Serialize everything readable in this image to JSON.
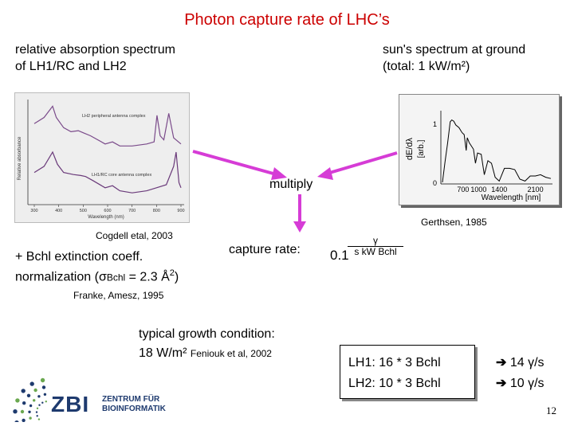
{
  "title": "Photon capture rate of LHC’s",
  "left_heading": {
    "line1": "relative absorption spectrum",
    "line2": "of LH1/RC and LH2"
  },
  "right_heading": {
    "line1": "sun's spectrum at ground",
    "line2": "(total: 1 kW/m²)"
  },
  "absorption_plot": {
    "ylabel": "Relative absorbance",
    "xlabel": "Wavelength (nm)",
    "label_top": "LH2 peripheral antenna complex",
    "label_bottom": "LH1/RC core antenna complex",
    "xticks": [
      "300",
      "400",
      "500",
      "600",
      "700",
      "800",
      "900"
    ],
    "top_curve": [
      [
        300,
        0.78
      ],
      [
        340,
        0.84
      ],
      [
        375,
        0.95
      ],
      [
        390,
        0.84
      ],
      [
        420,
        0.74
      ],
      [
        450,
        0.7
      ],
      [
        480,
        0.71
      ],
      [
        500,
        0.69
      ],
      [
        530,
        0.66
      ],
      [
        590,
        0.58
      ],
      [
        620,
        0.6
      ],
      [
        650,
        0.56
      ],
      [
        700,
        0.56
      ],
      [
        760,
        0.58
      ],
      [
        790,
        0.6
      ],
      [
        802,
        0.86
      ],
      [
        815,
        0.66
      ],
      [
        830,
        0.62
      ],
      [
        850,
        0.88
      ],
      [
        870,
        0.64
      ],
      [
        900,
        0.58
      ]
    ],
    "bottom_curve": [
      [
        300,
        0.3
      ],
      [
        340,
        0.36
      ],
      [
        375,
        0.5
      ],
      [
        395,
        0.38
      ],
      [
        420,
        0.3
      ],
      [
        460,
        0.28
      ],
      [
        490,
        0.27
      ],
      [
        510,
        0.26
      ],
      [
        540,
        0.22
      ],
      [
        590,
        0.15
      ],
      [
        620,
        0.17
      ],
      [
        650,
        0.12
      ],
      [
        700,
        0.1
      ],
      [
        760,
        0.12
      ],
      [
        800,
        0.15
      ],
      [
        840,
        0.18
      ],
      [
        870,
        0.36
      ],
      [
        880,
        0.5
      ],
      [
        892,
        0.2
      ],
      [
        900,
        0.15
      ]
    ]
  },
  "cite_cogdell": "Cogdell etal, 2003",
  "sun_plot": {
    "ylabel": "dE/dλ",
    "yunit": "[arb.]",
    "ytick1": "1",
    "ytick0": "0",
    "xticks": [
      "700",
      "1000",
      "1400",
      "2100"
    ],
    "xlabel": "Wavelength [nm]",
    "curve": [
      [
        300,
        0.0
      ],
      [
        350,
        0.32
      ],
      [
        400,
        0.62
      ],
      [
        450,
        0.95
      ],
      [
        480,
        0.98
      ],
      [
        520,
        0.96
      ],
      [
        560,
        0.9
      ],
      [
        620,
        0.86
      ],
      [
        680,
        0.78
      ],
      [
        720,
        0.75
      ],
      [
        760,
        0.5
      ],
      [
        780,
        0.7
      ],
      [
        820,
        0.62
      ],
      [
        900,
        0.52
      ],
      [
        940,
        0.3
      ],
      [
        980,
        0.46
      ],
      [
        1050,
        0.44
      ],
      [
        1110,
        0.12
      ],
      [
        1180,
        0.34
      ],
      [
        1250,
        0.3
      ],
      [
        1320,
        0.08
      ],
      [
        1400,
        0.02
      ],
      [
        1500,
        0.22
      ],
      [
        1600,
        0.22
      ],
      [
        1700,
        0.2
      ],
      [
        1800,
        0.05
      ],
      [
        1900,
        0.02
      ],
      [
        2000,
        0.1
      ],
      [
        2100,
        0.1
      ],
      [
        2200,
        0.12
      ],
      [
        2300,
        0.08
      ],
      [
        2400,
        0.06
      ]
    ]
  },
  "cite_gerthsen": "Gerthsen, 1985",
  "multiply": "multiply",
  "extinction": {
    "line1": "+ Bchl extinction coeff.",
    "line2_pre": "normalization (",
    "sigma": "σ",
    "sub": "Bchl",
    "line2_post": " = 2.3 Å",
    "sup": "2",
    "line2_end": ")"
  },
  "capture": {
    "label": "capture rate:",
    "value": "0.1",
    "numerator": "γ",
    "denominator": "s kW Bchl"
  },
  "cite_franke": "Franke, Amesz, 1995",
  "growth": {
    "line1": "typical growth condition:",
    "line2": "18 W/m²",
    "cite": "Feniouk et al, 2002"
  },
  "results": {
    "lh1": "LH1: 16 * 3 Bchl",
    "lh2": "LH2: 10 * 3 Bchl",
    "r1": "14 γ/s",
    "r2": "10 γ/s"
  },
  "logo": {
    "text1": "ZBI",
    "text2": "ZENTRUM FÜR",
    "text3": "BIOINFORMATIK"
  },
  "page_number": "12",
  "colors": {
    "title": "#cc0000",
    "arrow": "#d63cd6",
    "logo_blue": "#1e3a6e",
    "logo_green": "#6aa84f"
  }
}
